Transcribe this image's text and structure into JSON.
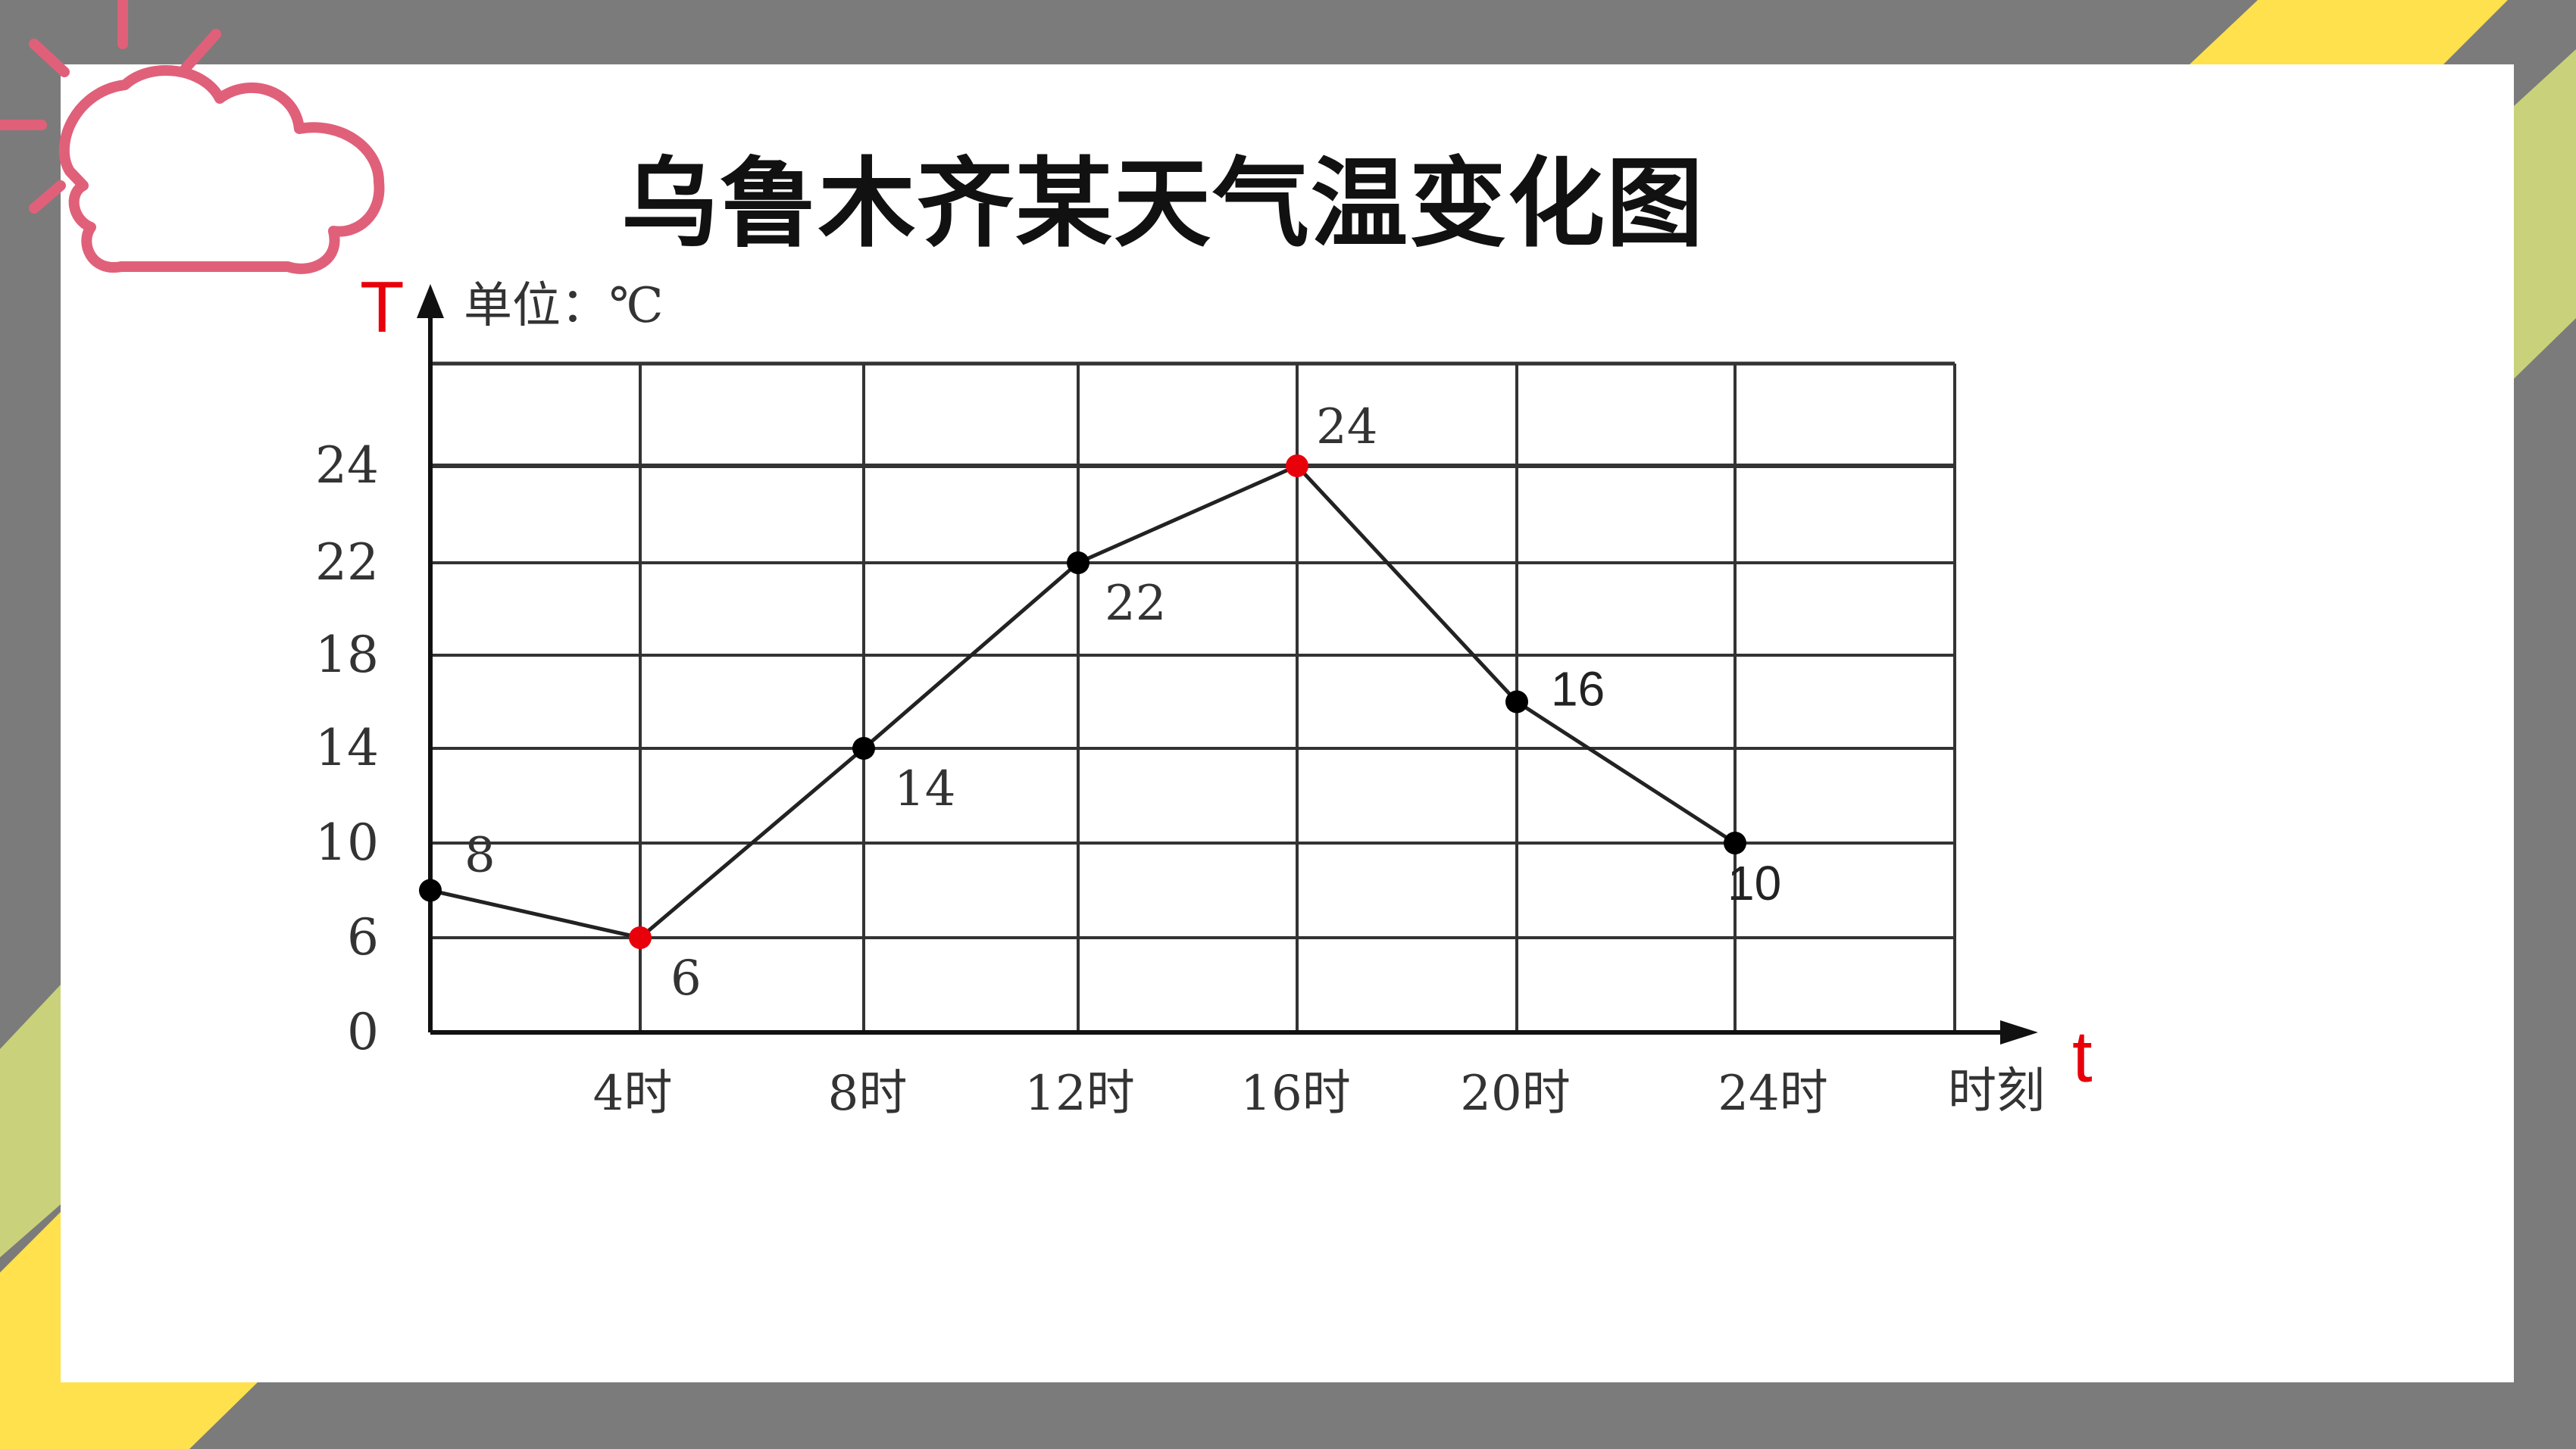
{
  "title": "乌鲁木齐某天气温变化图",
  "colors": {
    "frame": "#7b7b7b",
    "yellow": "#ffe14d",
    "green": "#c9d27a",
    "accent_red": "#e8000a",
    "weather_icon": "#e0607a"
  },
  "icons": [
    "sun-cloud-icon"
  ],
  "chart_data": {
    "type": "line",
    "y_axis_symbol": "T",
    "x_axis_symbol": "t",
    "y_unit_label": "单位：℃",
    "x_unit_label": "时刻",
    "x_tick_labels": [
      "4时",
      "8时",
      "12时",
      "16时",
      "20时",
      "24时"
    ],
    "y_tick_labels": [
      "0",
      "6",
      "10",
      "14",
      "18",
      "22",
      "24"
    ],
    "xlim": [
      0,
      28
    ],
    "grid": true,
    "series": [
      {
        "x": [
          0,
          4,
          8,
          12,
          16,
          20,
          24
        ],
        "y": [
          8,
          6,
          14,
          22,
          24,
          16,
          10
        ],
        "labels": [
          "8",
          "6",
          "14",
          "22",
          "24",
          "16",
          "10"
        ],
        "highlight": [
          false,
          true,
          false,
          false,
          true,
          false,
          false
        ]
      }
    ]
  }
}
